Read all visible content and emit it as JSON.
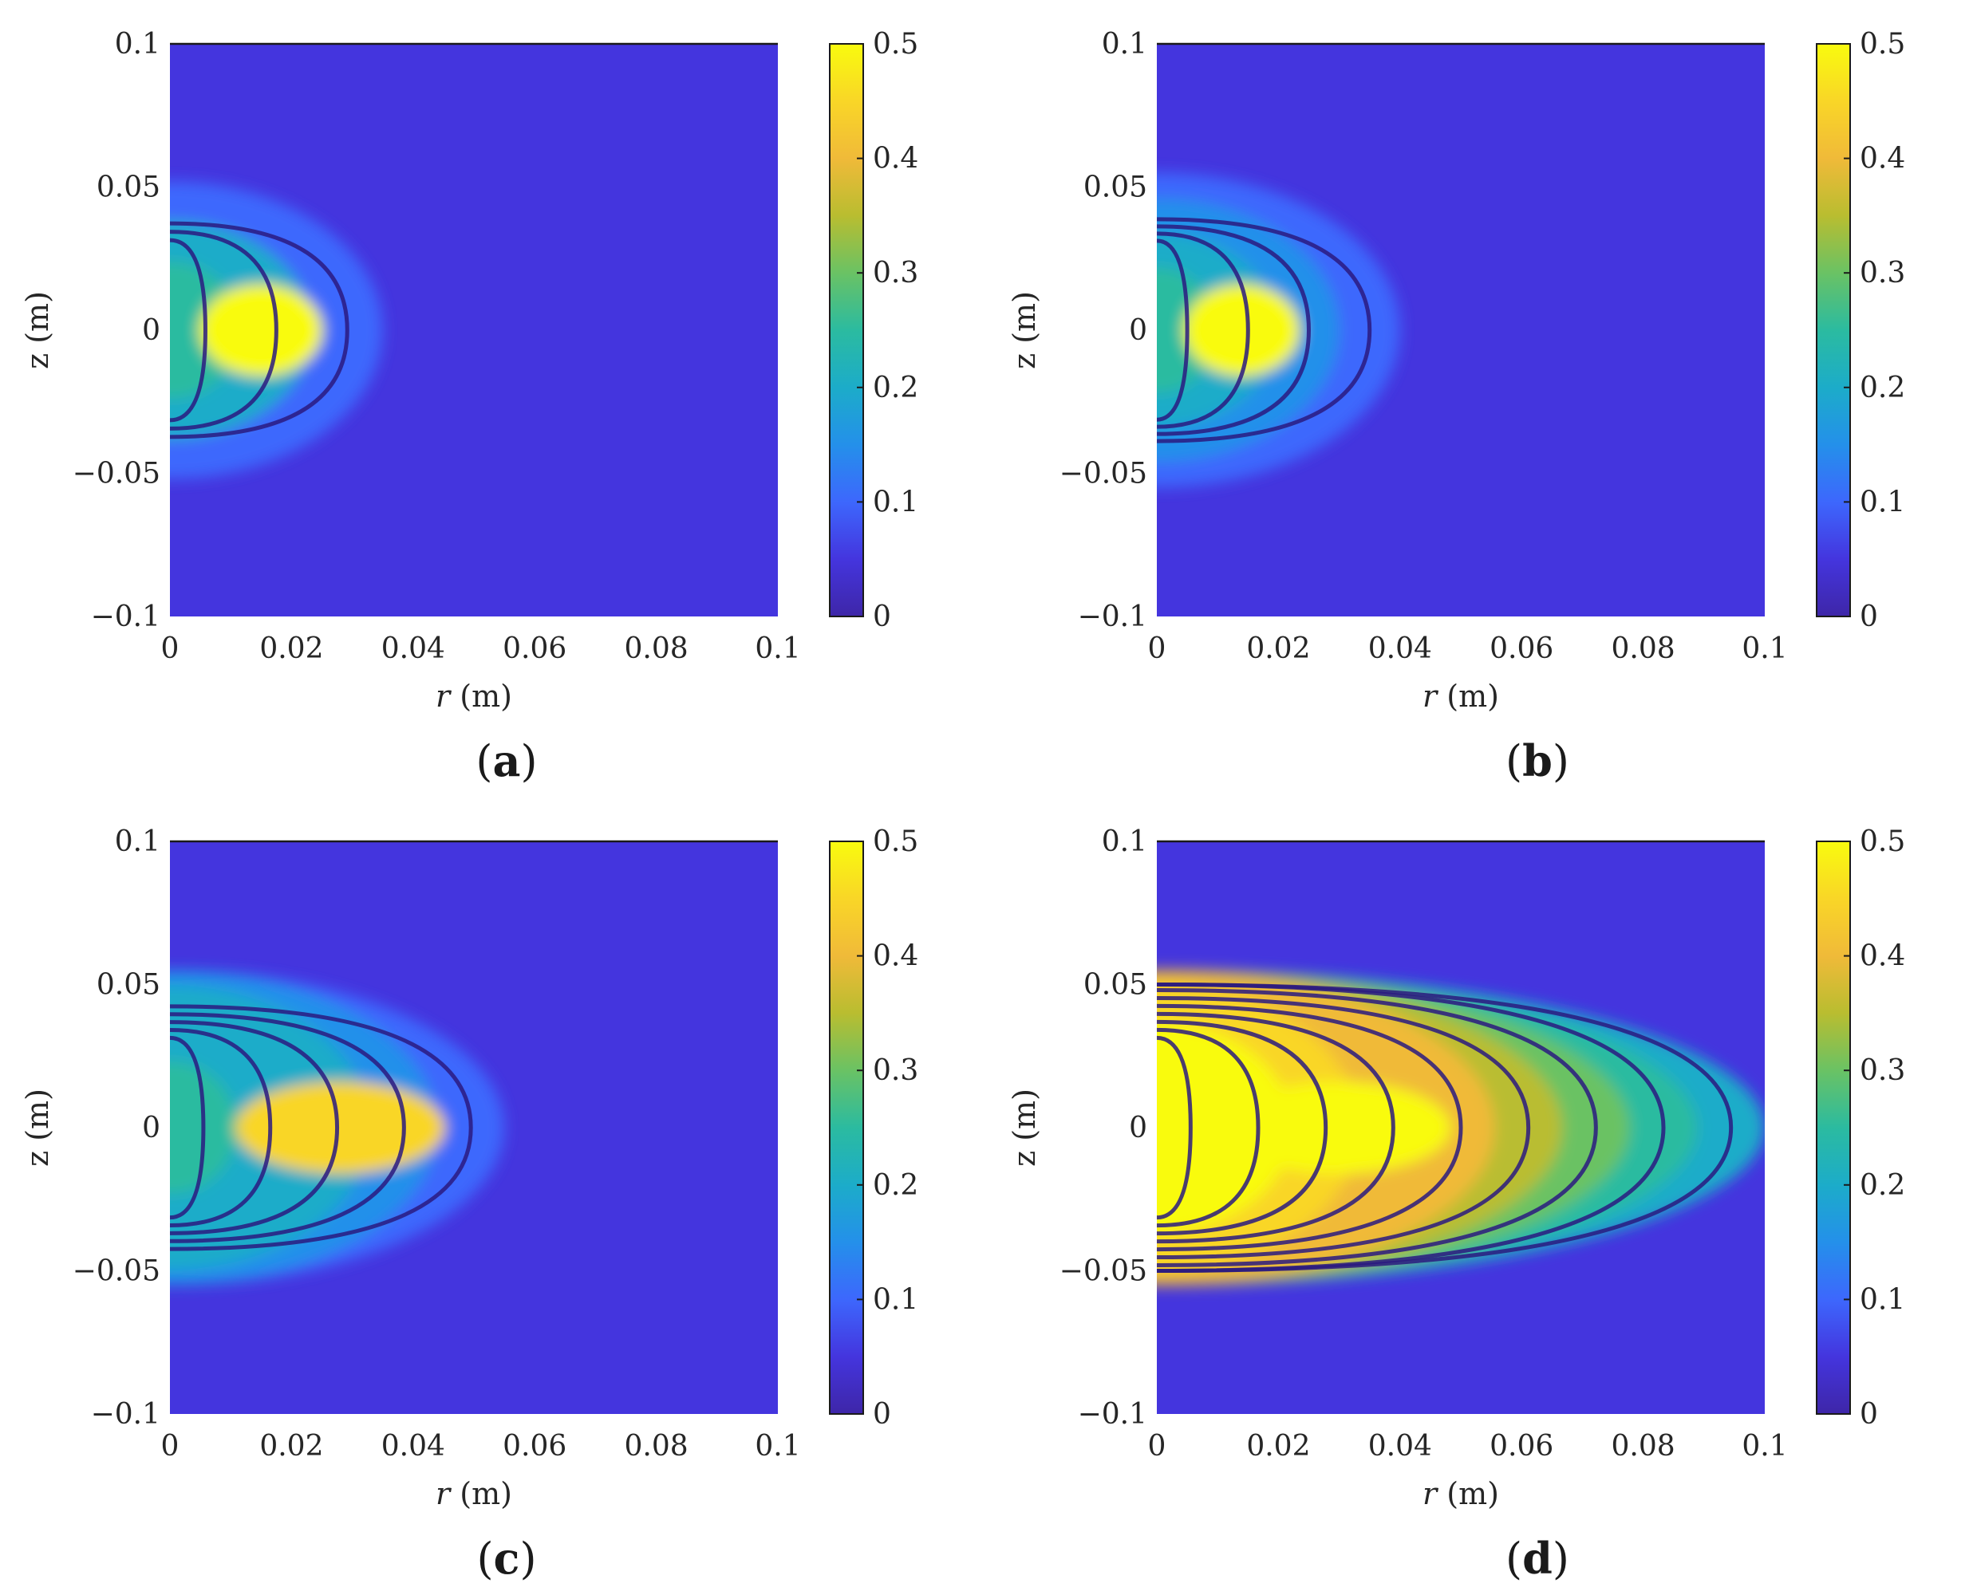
{
  "figure": {
    "panels": [
      {
        "id": "a",
        "caption_letter": "a",
        "xlabel_var": "r",
        "xlabel_unit": "(m)",
        "ylabel": "z (m)"
      },
      {
        "id": "b",
        "caption_letter": "b",
        "xlabel_var": "r",
        "xlabel_unit": "(m)",
        "ylabel": "z (m)"
      },
      {
        "id": "c",
        "caption_letter": "c",
        "xlabel_var": "r",
        "xlabel_unit": "(m)",
        "ylabel": "z (m)"
      },
      {
        "id": "d",
        "caption_letter": "d",
        "xlabel_var": "r",
        "xlabel_unit": "(m)",
        "ylabel": "z (m)"
      }
    ]
  },
  "chart_data": [
    {
      "type": "heatmap",
      "panel": "a",
      "xlabel": "r (m)",
      "ylabel": "z (m)",
      "xlim": [
        0,
        0.1
      ],
      "ylim": [
        -0.1,
        0.1
      ],
      "xticks": [
        "0",
        "0.02",
        "0.04",
        "0.06",
        "0.08",
        "0.1"
      ],
      "yticks": [
        "0.1",
        "0.05",
        "0",
        "−0.05",
        "−0.1"
      ],
      "colorbar": {
        "range": [
          0,
          0.5
        ],
        "ticks": [
          "0.5",
          "0.4",
          "0.3",
          "0.2",
          "0.1",
          "0"
        ]
      },
      "field": {
        "wave_extent_r": 0.035,
        "peak_r": 0.015,
        "peak_value": 0.5,
        "background": 0.02
      }
    },
    {
      "type": "heatmap",
      "panel": "b",
      "xlabel": "r (m)",
      "ylabel": "z (m)",
      "xlim": [
        0,
        0.1
      ],
      "ylim": [
        -0.1,
        0.1
      ],
      "xticks": [
        "0",
        "0.02",
        "0.04",
        "0.06",
        "0.08",
        "0.1"
      ],
      "yticks": [
        "0.1",
        "0.05",
        "0",
        "−0.05",
        "−0.1"
      ],
      "colorbar": {
        "range": [
          0,
          0.5
        ],
        "ticks": [
          "0.5",
          "0.4",
          "0.3",
          "0.2",
          "0.1",
          "0"
        ]
      },
      "field": {
        "wave_extent_r": 0.04,
        "peak_r": 0.014,
        "peak_value": 0.5,
        "background": 0.02
      }
    },
    {
      "type": "heatmap",
      "panel": "c",
      "xlabel": "r (m)",
      "ylabel": "z (m)",
      "xlim": [
        0,
        0.1
      ],
      "ylim": [
        -0.1,
        0.1
      ],
      "xticks": [
        "0",
        "0.02",
        "0.04",
        "0.06",
        "0.08",
        "0.1"
      ],
      "yticks": [
        "0.1",
        "0.05",
        "0",
        "−0.05",
        "−0.1"
      ],
      "colorbar": {
        "range": [
          0,
          0.5
        ],
        "ticks": [
          "0.5",
          "0.4",
          "0.3",
          "0.2",
          "0.1",
          "0"
        ]
      },
      "field": {
        "wave_extent_r": 0.055,
        "peak_r": 0.028,
        "peak_value": 0.45,
        "background": 0.02
      }
    },
    {
      "type": "heatmap",
      "panel": "d",
      "xlabel": "r (m)",
      "ylabel": "z (m)",
      "xlim": [
        0,
        0.1
      ],
      "ylim": [
        -0.1,
        0.1
      ],
      "xticks": [
        "0",
        "0.02",
        "0.04",
        "0.06",
        "0.08",
        "0.1"
      ],
      "yticks": [
        "0.1",
        "0.05",
        "0",
        "−0.05",
        "−0.1"
      ],
      "colorbar": {
        "range": [
          0,
          0.5
        ],
        "ticks": [
          "0.5",
          "0.4",
          "0.3",
          "0.2",
          "0.1",
          "0"
        ]
      },
      "field": {
        "wave_extent_r": 0.1,
        "peak_r": 0.03,
        "peak_value": 0.5,
        "background": 0.02
      }
    }
  ]
}
